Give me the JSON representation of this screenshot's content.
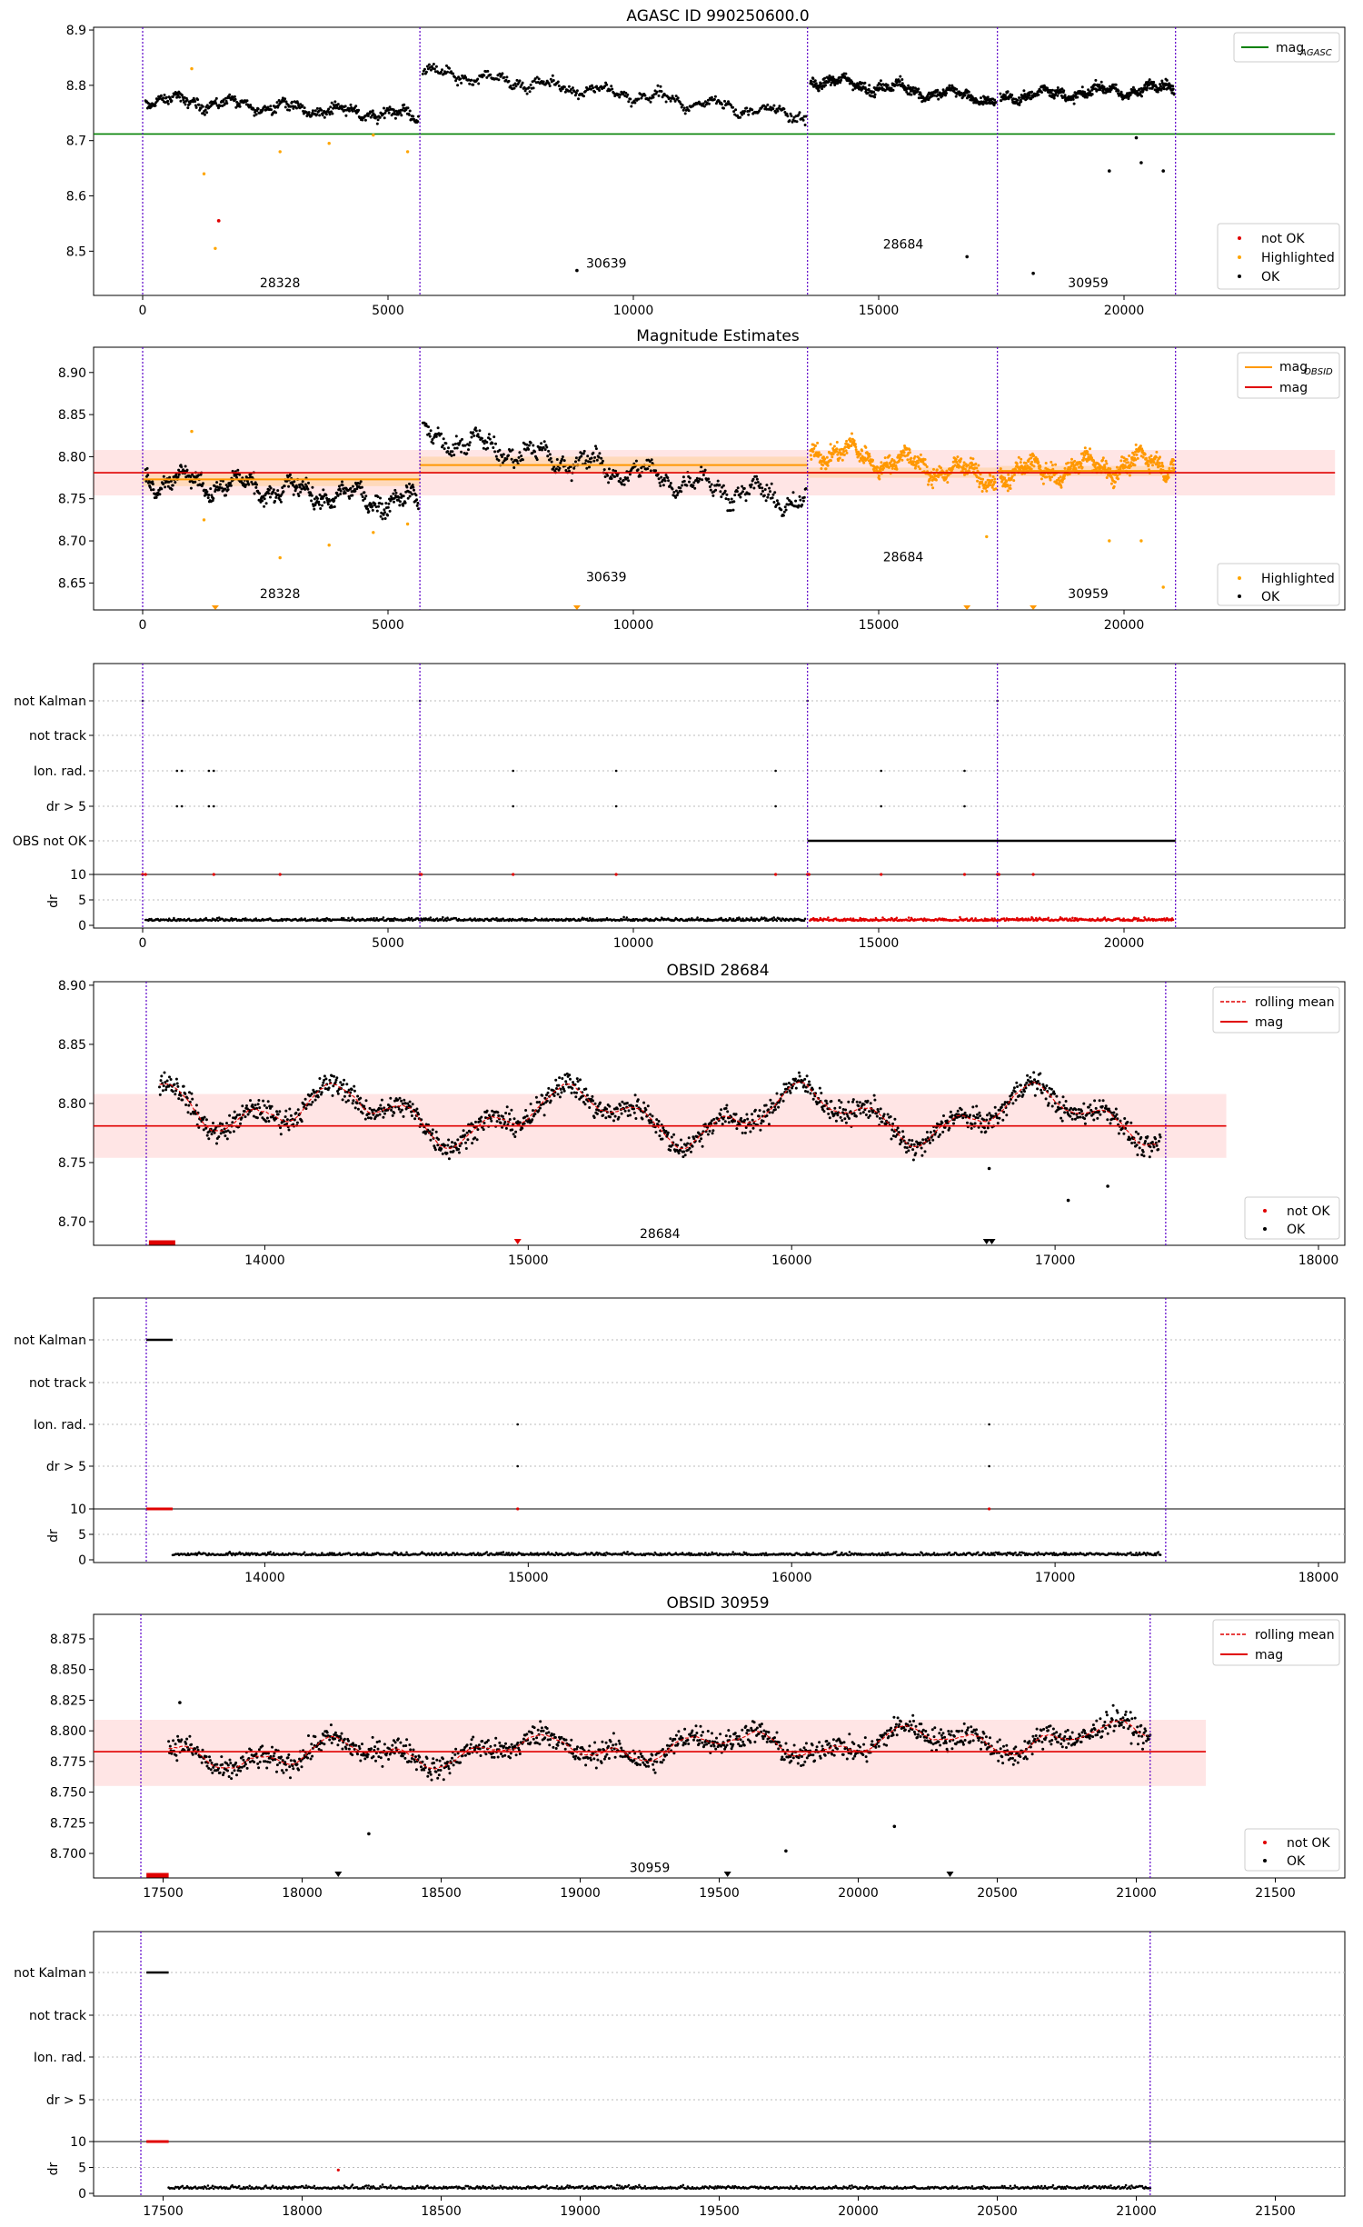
{
  "chart_data": [
    {
      "type": "scatter",
      "title": "AGASC ID 990250600.0",
      "xlim": [
        -1000,
        24500
      ],
      "ylim": [
        8.42,
        8.905
      ],
      "xticks": [
        0,
        5000,
        10000,
        15000,
        20000
      ],
      "yticks": [
        8.5,
        8.6,
        8.7,
        8.8,
        8.9
      ],
      "obs_boundaries": [
        0,
        5650,
        13550,
        17420,
        21050
      ],
      "obsid_labels": [
        {
          "text": "28328",
          "x": 2800,
          "y": 8.435
        },
        {
          "text": "30639",
          "x": 9450,
          "y": 8.47
        },
        {
          "text": "28684",
          "x": 15500,
          "y": 8.505
        },
        {
          "text": "30959",
          "x": 19270,
          "y": 8.435
        }
      ],
      "lines": [
        {
          "name": "mag_AGASC",
          "value": 8.712,
          "color": "#008000"
        }
      ],
      "segment_levels": [
        {
          "x": [
            0,
            5650
          ],
          "start": 8.775,
          "end": 8.745
        },
        {
          "x": [
            5650,
            13550
          ],
          "start": 8.825,
          "end": 8.745
        },
        {
          "x": [
            13550,
            17420
          ],
          "start": 8.81,
          "end": 8.775
        },
        {
          "x": [
            17420,
            21050
          ],
          "start": 8.78,
          "end": 8.795
        }
      ],
      "outliers_orange": [
        [
          1000,
          8.83
        ],
        [
          1250,
          8.64
        ],
        [
          1480,
          8.505
        ],
        [
          2800,
          8.68
        ],
        [
          3800,
          8.695
        ],
        [
          5400,
          8.68
        ],
        [
          4700,
          8.71
        ]
      ],
      "outliers_red": [
        [
          1550,
          8.555
        ]
      ],
      "outliers_black": [
        [
          8850,
          8.465
        ],
        [
          16800,
          8.49
        ],
        [
          18150,
          8.46
        ],
        [
          19700,
          8.645
        ],
        [
          20250,
          8.705
        ],
        [
          20350,
          8.66
        ],
        [
          20800,
          8.645
        ]
      ],
      "legend_upper": [
        "mag_AGASC"
      ],
      "legend_lower": [
        "not OK",
        "Highlighted",
        "OK"
      ],
      "legend_position": "right"
    },
    {
      "type": "scatter",
      "title": "Magnitude Estimates",
      "xlim": [
        -1000,
        24500
      ],
      "ylim": [
        8.618,
        8.93
      ],
      "xticks": [
        0,
        5000,
        10000,
        15000,
        20000
      ],
      "yticks": [
        8.65,
        8.7,
        8.75,
        8.8,
        8.85,
        8.9
      ],
      "mag": 8.781,
      "mag_band": [
        8.754,
        8.808
      ],
      "obsid_mag": [
        {
          "x": [
            0,
            5650
          ],
          "value": 8.773,
          "band": [
            8.765,
            8.781
          ]
        },
        {
          "x": [
            5650,
            13550
          ],
          "value": 8.79,
          "band": [
            8.78,
            8.8
          ]
        },
        {
          "x": [
            13550,
            17420
          ],
          "value": 8.781,
          "band": [
            8.775,
            8.787
          ]
        },
        {
          "x": [
            17420,
            21050
          ],
          "value": 8.783,
          "band": [
            8.777,
            8.789
          ]
        }
      ],
      "legend_upper": [
        "mag_OBSID",
        "mag"
      ],
      "legend_lower": [
        "Highlighted",
        "OK"
      ]
    },
    {
      "type": "scatter",
      "title": "",
      "categories": [
        "not Kalman",
        "not track",
        "Ion. rad.",
        "dr > 5",
        "OBS not OK"
      ],
      "dr_yticks": [
        0,
        5,
        10
      ],
      "dr_label": "dr",
      "xticks": [
        0,
        5000,
        10000,
        15000,
        20000
      ],
      "ionrad_times": [
        800,
        1450,
        7550,
        9650,
        12900,
        15050,
        16750
      ],
      "notkalman_times": [
        0,
        5650,
        13550,
        17420
      ],
      "obs_not_ok_range": [
        13550,
        21050
      ]
    },
    {
      "type": "scatter",
      "title": "OBSID 28684",
      "xlim": [
        13350,
        18100
      ],
      "ylim": [
        8.68,
        8.903
      ],
      "xticks": [
        14000,
        15000,
        16000,
        17000,
        18000
      ],
      "yticks": [
        8.7,
        8.75,
        8.8,
        8.85,
        8.9
      ],
      "mag": 8.781,
      "mag_band": [
        8.754,
        8.808
      ],
      "bounds": [
        13550,
        17420
      ],
      "obsid_label": {
        "text": "28684",
        "x": 15500,
        "y": 8.686
      },
      "legend_upper": [
        "rolling mean",
        "mag"
      ],
      "legend_lower": [
        "not OK",
        "OK"
      ]
    },
    {
      "type": "scatter",
      "title": "",
      "categories": [
        "not Kalman",
        "not track",
        "Ion. rad.",
        "dr > 5"
      ],
      "dr_yticks": [
        0,
        5,
        10
      ],
      "dr_label": "dr",
      "xticks": [
        14000,
        15000,
        16000,
        17000,
        18000
      ],
      "xlim": [
        13350,
        18100
      ],
      "bounds": [
        13550,
        17420
      ],
      "ionrad_times": [
        14960,
        16750
      ]
    },
    {
      "type": "scatter",
      "title": "OBSID 30959",
      "xlim": [
        17250,
        21750
      ],
      "ylim": [
        8.68,
        8.895
      ],
      "xticks": [
        17500,
        18000,
        18500,
        19000,
        19500,
        20000,
        20500,
        21000,
        21500
      ],
      "yticks": [
        8.7,
        8.725,
        8.75,
        8.775,
        8.8,
        8.825,
        8.85,
        8.875
      ],
      "mag": 8.783,
      "mag_band": [
        8.755,
        8.809
      ],
      "bounds": [
        17420,
        21050
      ],
      "obsid_label": {
        "text": "30959",
        "x": 19250,
        "y": 8.685
      },
      "legend_upper": [
        "rolling mean",
        "mag"
      ],
      "legend_lower": [
        "not OK",
        "OK"
      ]
    },
    {
      "type": "scatter",
      "title": "",
      "categories": [
        "not Kalman",
        "not track",
        "Ion. rad.",
        "dr > 5"
      ],
      "dr_yticks": [
        0,
        5,
        10
      ],
      "dr_label": "dr",
      "xticks": [
        17500,
        18000,
        18500,
        19000,
        19500,
        20000,
        20500,
        21000,
        21500
      ],
      "xlim": [
        17250,
        21750
      ],
      "bounds": [
        17420,
        21050
      ]
    }
  ]
}
